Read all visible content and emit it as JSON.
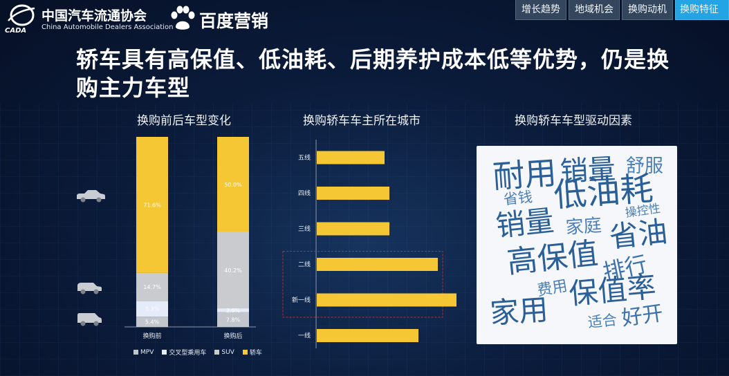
{
  "header": {
    "cada_name_cn": "中国汽车流通协会",
    "cada_name_en": "China Automobile Dealers Association",
    "cada_emblem_text": "CADA",
    "baidu_brand": "百度营销"
  },
  "tabs": [
    {
      "label": "增长趋势",
      "active": false
    },
    {
      "label": "地域机会",
      "active": false
    },
    {
      "label": "换购动机",
      "active": false
    },
    {
      "label": "换购特征",
      "active": true
    }
  ],
  "headline": "轿车具有高保值、低油耗、后期养护成本低等优势，仍是换购主力车型",
  "left_panel": {
    "title": "换购前后车型变化",
    "car_icons": [
      "sedan-car-icon",
      "suv-car-icon",
      "mpv-car-icon"
    ]
  },
  "middle_panel": {
    "title": "换购轿车车主所在城市"
  },
  "right_panel": {
    "title": "换购轿车车型驱动因素",
    "words": [
      {
        "text": "耐用",
        "color": "#2a5f97"
      },
      {
        "text": "销量",
        "color": "#2a5f97"
      },
      {
        "text": "舒服",
        "color": "#4c7fb6"
      },
      {
        "text": "省钱",
        "color": "#4c7fb6"
      },
      {
        "text": "低油耗",
        "color": "#2a5f97"
      },
      {
        "text": "操控性",
        "color": "#4c7fb6"
      },
      {
        "text": "销量",
        "color": "#2a5f97"
      },
      {
        "text": "家庭",
        "color": "#4c7fb6"
      },
      {
        "text": "省油",
        "color": "#2a5f97"
      },
      {
        "text": "高保值",
        "color": "#2a5f97"
      },
      {
        "text": "排行",
        "color": "#3d72ab"
      },
      {
        "text": "费用",
        "color": "#4c7fb6"
      },
      {
        "text": "保值率",
        "color": "#2a5f97"
      },
      {
        "text": "家用",
        "color": "#2a5f97"
      },
      {
        "text": "适合",
        "color": "#4c7fb6"
      },
      {
        "text": "好开",
        "color": "#3d72ab"
      }
    ]
  },
  "chart_data": [
    {
      "type": "bar",
      "stacked": true,
      "categories": [
        "换购前",
        "换购后"
      ],
      "series": [
        {
          "name": "MPV",
          "values": [
            5.4,
            7.8
          ],
          "labels": [
            "5.4%",
            "7.8%"
          ],
          "color": "#c3c6cc"
        },
        {
          "name": "交叉型乘用车",
          "values": [
            8.3,
            2.0
          ],
          "labels": [
            "8.3%",
            "2.0%"
          ],
          "color": "#e3ecf8"
        },
        {
          "name": "SUV",
          "values": [
            14.7,
            40.2
          ],
          "labels": [
            "14.7%",
            "40.2%"
          ],
          "color": "#c9cbcf"
        },
        {
          "name": "轿车",
          "values": [
            71.6,
            50.0
          ],
          "labels": [
            "71.6%",
            "50.0%"
          ],
          "color": "#f5c735"
        }
      ],
      "ylim": [
        0,
        100
      ],
      "legend_position": "bottom"
    },
    {
      "type": "bar",
      "orientation": "horizontal",
      "categories": [
        "五线",
        "四线",
        "三线",
        "二线",
        "新一线",
        "一线"
      ],
      "values": [
        14,
        15,
        15,
        25,
        33,
        21
      ],
      "color": "#f5c735",
      "highlighted": [
        "二线",
        "新一线"
      ],
      "highlight_color": "#c62828"
    }
  ]
}
